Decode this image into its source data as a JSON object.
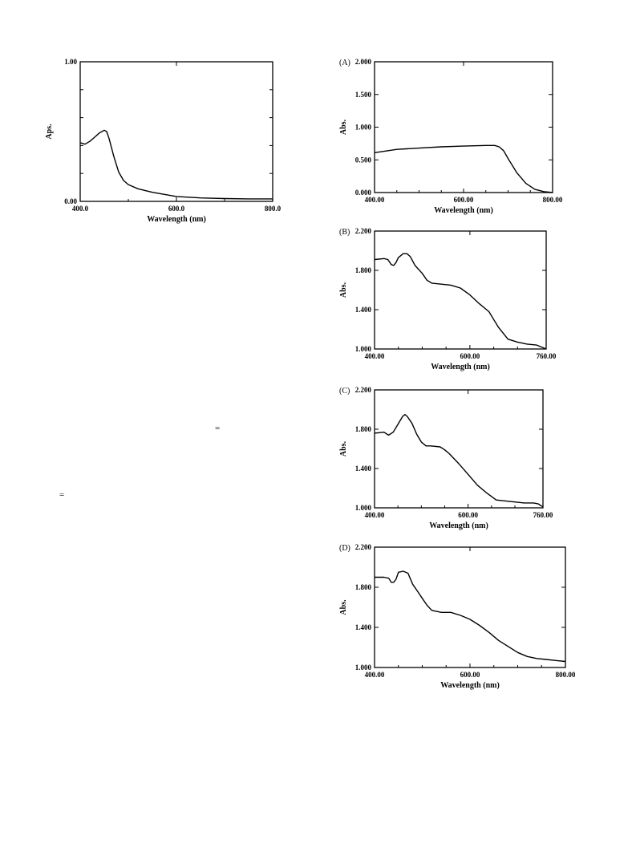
{
  "chart_data": [
    {
      "type": "line",
      "panel": "",
      "xlabel": "Wavelength (nm)",
      "ylabel": "Aps.",
      "xlim": [
        400,
        800
      ],
      "ylim": [
        0,
        1
      ],
      "x_tick_labels": [
        "400.0",
        "600.0",
        "800.0"
      ],
      "x_tick_values": [
        400,
        600,
        800
      ],
      "y_tick_labels": [
        "0.00",
        "1.00"
      ],
      "y_tick_values": [
        0,
        1
      ],
      "minor_y_ticks": [
        0.2,
        0.4,
        0.6,
        0.8
      ],
      "minor_x_ticks": [
        500,
        700
      ],
      "series": [
        {
          "x": [
            400,
            410,
            420,
            430,
            440,
            450,
            455,
            460,
            470,
            480,
            490,
            500,
            520,
            550,
            600,
            650,
            700,
            750,
            800
          ],
          "y": [
            0.42,
            0.41,
            0.43,
            0.46,
            0.49,
            0.51,
            0.5,
            0.45,
            0.32,
            0.21,
            0.15,
            0.12,
            0.09,
            0.065,
            0.035,
            0.025,
            0.02,
            0.018,
            0.018
          ]
        }
      ]
    },
    {
      "type": "line",
      "panel": "(A)",
      "xlabel": "Wavelength (nm)",
      "ylabel": "Abs.",
      "xlim": [
        400,
        800
      ],
      "ylim": [
        0,
        2
      ],
      "x_tick_labels": [
        "400.00",
        "600.00",
        "800.00"
      ],
      "x_tick_values": [
        400,
        600,
        800
      ],
      "y_tick_labels": [
        "0.000",
        "0.500",
        "1.000",
        "1.500",
        "2.000"
      ],
      "y_tick_values": [
        0,
        0.5,
        1,
        1.5,
        2
      ],
      "minor_x_ticks": [
        450,
        500,
        550,
        650,
        700,
        750
      ],
      "series": [
        {
          "x": [
            400,
            420,
            450,
            500,
            550,
            600,
            650,
            670,
            680,
            690,
            700,
            720,
            740,
            760,
            780,
            800
          ],
          "y": [
            0.61,
            0.63,
            0.66,
            0.68,
            0.7,
            0.71,
            0.72,
            0.72,
            0.7,
            0.64,
            0.52,
            0.3,
            0.14,
            0.05,
            0.015,
            0.0
          ]
        }
      ]
    },
    {
      "type": "line",
      "panel": "(B)",
      "xlabel": "Wavelength (nm)",
      "ylabel": "Abs.",
      "xlim": [
        400,
        760
      ],
      "ylim": [
        1.0,
        2.2
      ],
      "x_tick_labels": [
        "400.00",
        "600.00",
        "760.00"
      ],
      "x_tick_values": [
        400,
        600,
        760
      ],
      "y_tick_labels": [
        "1.000",
        "1.400",
        "1.800",
        "2.200"
      ],
      "y_tick_values": [
        1.0,
        1.4,
        1.8,
        2.2
      ],
      "minor_x_ticks": [
        450,
        500,
        550,
        650,
        700
      ],
      "series": [
        {
          "x": [
            400,
            420,
            428,
            435,
            440,
            445,
            450,
            460,
            468,
            475,
            485,
            500,
            510,
            520,
            540,
            560,
            580,
            600,
            620,
            640,
            650,
            660,
            680,
            700,
            720,
            740,
            760
          ],
          "y": [
            1.91,
            1.92,
            1.91,
            1.86,
            1.85,
            1.88,
            1.93,
            1.97,
            1.97,
            1.94,
            1.85,
            1.77,
            1.7,
            1.67,
            1.66,
            1.65,
            1.62,
            1.55,
            1.46,
            1.38,
            1.3,
            1.22,
            1.1,
            1.07,
            1.05,
            1.04,
            1.0
          ]
        }
      ]
    },
    {
      "type": "line",
      "panel": "(C)",
      "xlabel": "Wavelength (nm)",
      "ylabel": "Abs.",
      "xlim": [
        400,
        760
      ],
      "ylim": [
        1.0,
        2.2
      ],
      "x_tick_labels": [
        "400.00",
        "600.00",
        "760.00"
      ],
      "x_tick_values": [
        400,
        600,
        760
      ],
      "y_tick_labels": [
        "1.000",
        "1.400",
        "1.800",
        "2.200"
      ],
      "y_tick_values": [
        1.0,
        1.4,
        1.8,
        2.2
      ],
      "minor_x_ticks": [
        450,
        500,
        550,
        650,
        700
      ],
      "series": [
        {
          "x": [
            400,
            420,
            430,
            440,
            450,
            460,
            465,
            470,
            480,
            490,
            500,
            510,
            520,
            540,
            550,
            560,
            580,
            600,
            620,
            640,
            660,
            680,
            700,
            720,
            740,
            750,
            760
          ],
          "y": [
            1.76,
            1.77,
            1.74,
            1.77,
            1.85,
            1.93,
            1.95,
            1.93,
            1.86,
            1.75,
            1.67,
            1.63,
            1.63,
            1.62,
            1.59,
            1.55,
            1.45,
            1.34,
            1.23,
            1.15,
            1.08,
            1.07,
            1.06,
            1.05,
            1.05,
            1.04,
            1.01
          ]
        }
      ]
    },
    {
      "type": "line",
      "panel": "(D)",
      "xlabel": "Wavelength (nm)",
      "ylabel": "Abs.",
      "xlim": [
        400,
        800
      ],
      "ylim": [
        1.0,
        2.2
      ],
      "x_tick_labels": [
        "400.00",
        "600.00",
        "800.00"
      ],
      "x_tick_values": [
        400,
        600,
        800
      ],
      "y_tick_labels": [
        "1.000",
        "1.400",
        "1.800",
        "2.200"
      ],
      "y_tick_values": [
        1.0,
        1.4,
        1.8,
        2.2
      ],
      "minor_x_ticks": [
        450,
        500,
        550,
        650,
        700,
        750
      ],
      "series": [
        {
          "x": [
            400,
            420,
            430,
            435,
            440,
            445,
            450,
            460,
            470,
            480,
            490,
            500,
            510,
            520,
            540,
            560,
            580,
            600,
            620,
            640,
            660,
            680,
            700,
            720,
            740,
            760,
            780,
            800
          ],
          "y": [
            1.9,
            1.9,
            1.89,
            1.85,
            1.85,
            1.88,
            1.95,
            1.96,
            1.94,
            1.83,
            1.76,
            1.69,
            1.62,
            1.57,
            1.55,
            1.55,
            1.52,
            1.48,
            1.42,
            1.35,
            1.27,
            1.21,
            1.15,
            1.11,
            1.09,
            1.08,
            1.07,
            1.06
          ]
        }
      ]
    }
  ],
  "stray_marks": [
    "=",
    "="
  ]
}
